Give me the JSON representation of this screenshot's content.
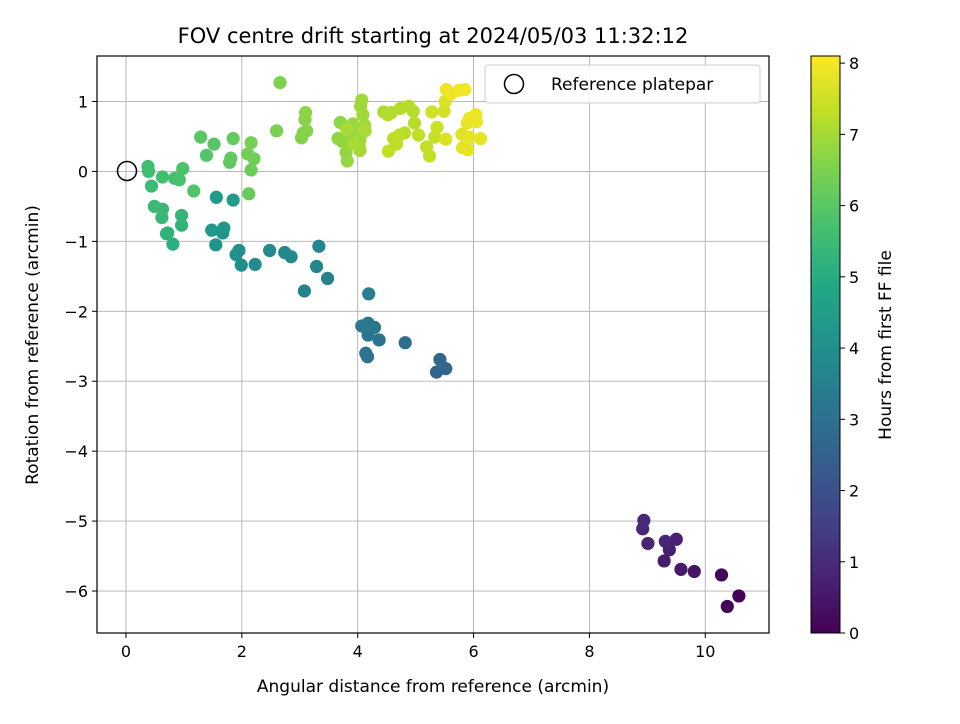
{
  "chart_data": {
    "type": "scatter",
    "title": "FOV centre drift starting at 2024/05/03 11:32:12",
    "xlabel": "Angular distance from reference (arcmin)",
    "ylabel": "Rotation from reference (arcmin)",
    "xlim": [
      -0.5,
      11.1
    ],
    "ylim": [
      -6.6,
      1.65
    ],
    "xticks": [
      0,
      2,
      4,
      6,
      8,
      10
    ],
    "yticks": [
      1,
      0,
      -1,
      -2,
      -3,
      -4,
      -5,
      -6
    ],
    "grid": true,
    "legend": {
      "position": "top-right",
      "entries": [
        "Reference platepar"
      ]
    },
    "colorbar": {
      "label": "Hours from first FF file",
      "range": [
        0,
        8.1
      ],
      "ticks": [
        0,
        1,
        2,
        3,
        4,
        5,
        6,
        7,
        8
      ],
      "colormap": "viridis"
    },
    "reference_point": {
      "x": 0,
      "y": 0
    },
    "points": [
      {
        "x": 10.38,
        "y": -6.22,
        "c": 0.05
      },
      {
        "x": 10.58,
        "y": -6.07,
        "c": 0.1
      },
      {
        "x": 10.28,
        "y": -5.77,
        "c": 0.15
      },
      {
        "x": 9.81,
        "y": -5.72,
        "c": 0.45
      },
      {
        "x": 9.58,
        "y": -5.69,
        "c": 0.55
      },
      {
        "x": 9.29,
        "y": -5.57,
        "c": 0.65
      },
      {
        "x": 9.38,
        "y": -5.41,
        "c": 0.7
      },
      {
        "x": 9.5,
        "y": -5.26,
        "c": 0.75
      },
      {
        "x": 9.31,
        "y": -5.29,
        "c": 0.8
      },
      {
        "x": 9.01,
        "y": -5.32,
        "c": 0.85
      },
      {
        "x": 8.92,
        "y": -5.11,
        "c": 0.9
      },
      {
        "x": 8.94,
        "y": -4.99,
        "c": 0.95
      },
      {
        "x": 5.36,
        "y": -2.87,
        "c": 2.6
      },
      {
        "x": 5.52,
        "y": -2.82,
        "c": 2.65
      },
      {
        "x": 5.42,
        "y": -2.69,
        "c": 2.7
      },
      {
        "x": 4.82,
        "y": -2.45,
        "c": 2.9
      },
      {
        "x": 4.17,
        "y": -2.65,
        "c": 3.0
      },
      {
        "x": 4.14,
        "y": -2.6,
        "c": 3.05
      },
      {
        "x": 4.37,
        "y": -2.41,
        "c": 3.1
      },
      {
        "x": 4.18,
        "y": -2.34,
        "c": 3.15
      },
      {
        "x": 4.29,
        "y": -2.23,
        "c": 3.2
      },
      {
        "x": 4.18,
        "y": -2.17,
        "c": 3.25
      },
      {
        "x": 4.07,
        "y": -2.21,
        "c": 3.3
      },
      {
        "x": 4.19,
        "y": -1.75,
        "c": 3.4
      },
      {
        "x": 3.48,
        "y": -1.53,
        "c": 3.55
      },
      {
        "x": 3.08,
        "y": -1.71,
        "c": 3.6
      },
      {
        "x": 3.29,
        "y": -1.36,
        "c": 3.65
      },
      {
        "x": 3.33,
        "y": -1.07,
        "c": 3.7
      },
      {
        "x": 2.85,
        "y": -1.22,
        "c": 3.75
      },
      {
        "x": 2.74,
        "y": -1.16,
        "c": 3.8
      },
      {
        "x": 2.48,
        "y": -1.13,
        "c": 3.85
      },
      {
        "x": 2.23,
        "y": -1.33,
        "c": 3.9
      },
      {
        "x": 1.99,
        "y": -1.34,
        "c": 3.95
      },
      {
        "x": 1.95,
        "y": -1.13,
        "c": 4.0
      },
      {
        "x": 1.9,
        "y": -1.19,
        "c": 4.05
      },
      {
        "x": 1.55,
        "y": -1.05,
        "c": 4.1
      },
      {
        "x": 1.67,
        "y": -0.88,
        "c": 4.2
      },
      {
        "x": 1.69,
        "y": -0.81,
        "c": 4.25
      },
      {
        "x": 1.48,
        "y": -0.84,
        "c": 4.3
      },
      {
        "x": 1.56,
        "y": -0.37,
        "c": 4.4
      },
      {
        "x": 1.85,
        "y": -0.41,
        "c": 4.45
      },
      {
        "x": 0.81,
        "y": -1.04,
        "c": 5.1
      },
      {
        "x": 0.72,
        "y": -0.88,
        "c": 5.15
      },
      {
        "x": 0.7,
        "y": -0.89,
        "c": 5.2
      },
      {
        "x": 0.96,
        "y": -0.77,
        "c": 5.25
      },
      {
        "x": 0.96,
        "y": -0.63,
        "c": 5.3
      },
      {
        "x": 0.62,
        "y": -0.66,
        "c": 5.35
      },
      {
        "x": 0.63,
        "y": -0.54,
        "c": 5.4
      },
      {
        "x": 0.49,
        "y": -0.5,
        "c": 5.45
      },
      {
        "x": 0.44,
        "y": -0.21,
        "c": 5.5
      },
      {
        "x": 0.38,
        "y": 0.07,
        "c": 5.55
      },
      {
        "x": 0.39,
        "y": 0.0,
        "c": 5.6
      },
      {
        "x": 0.63,
        "y": -0.08,
        "c": 5.65
      },
      {
        "x": 0.84,
        "y": -0.1,
        "c": 5.7
      },
      {
        "x": 0.92,
        "y": -0.12,
        "c": 5.75
      },
      {
        "x": 0.98,
        "y": 0.04,
        "c": 5.8
      },
      {
        "x": 1.17,
        "y": -0.28,
        "c": 5.85
      },
      {
        "x": 1.39,
        "y": 0.23,
        "c": 5.9
      },
      {
        "x": 1.52,
        "y": 0.39,
        "c": 5.95
      },
      {
        "x": 1.29,
        "y": 0.49,
        "c": 6.0
      },
      {
        "x": 1.79,
        "y": 0.13,
        "c": 6.05
      },
      {
        "x": 1.81,
        "y": 0.19,
        "c": 6.1
      },
      {
        "x": 1.85,
        "y": 0.47,
        "c": 6.15
      },
      {
        "x": 2.12,
        "y": -0.32,
        "c": 6.2
      },
      {
        "x": 2.16,
        "y": 0.02,
        "c": 6.25
      },
      {
        "x": 2.21,
        "y": 0.18,
        "c": 6.3
      },
      {
        "x": 2.1,
        "y": 0.25,
        "c": 6.35
      },
      {
        "x": 2.16,
        "y": 0.41,
        "c": 6.4
      },
      {
        "x": 2.6,
        "y": 0.58,
        "c": 6.45
      },
      {
        "x": 2.66,
        "y": 1.27,
        "c": 6.5
      },
      {
        "x": 3.03,
        "y": 0.48,
        "c": 6.55
      },
      {
        "x": 3.06,
        "y": 0.55,
        "c": 6.6
      },
      {
        "x": 3.12,
        "y": 0.58,
        "c": 6.62
      },
      {
        "x": 3.09,
        "y": 0.74,
        "c": 6.65
      },
      {
        "x": 3.1,
        "y": 0.84,
        "c": 6.68
      },
      {
        "x": 3.7,
        "y": 0.7,
        "c": 6.7
      },
      {
        "x": 3.77,
        "y": 0.47,
        "c": 6.72
      },
      {
        "x": 3.66,
        "y": 0.47,
        "c": 6.74
      },
      {
        "x": 3.73,
        "y": 0.43,
        "c": 6.76
      },
      {
        "x": 3.8,
        "y": 0.27,
        "c": 6.78
      },
      {
        "x": 3.82,
        "y": 0.15,
        "c": 6.8
      },
      {
        "x": 3.86,
        "y": 0.58,
        "c": 6.82
      },
      {
        "x": 3.92,
        "y": 0.68,
        "c": 6.84
      },
      {
        "x": 3.97,
        "y": 0.52,
        "c": 6.86
      },
      {
        "x": 4.04,
        "y": 0.45,
        "c": 6.88
      },
      {
        "x": 4.05,
        "y": 0.93,
        "c": 6.9
      },
      {
        "x": 4.07,
        "y": 1.02,
        "c": 6.92
      },
      {
        "x": 4.09,
        "y": 0.81,
        "c": 6.94
      },
      {
        "x": 4.12,
        "y": 0.66,
        "c": 6.96
      },
      {
        "x": 4.03,
        "y": 0.35,
        "c": 6.98
      },
      {
        "x": 4.04,
        "y": 0.3,
        "c": 7.0
      },
      {
        "x": 3.92,
        "y": 0.4,
        "c": 7.02
      },
      {
        "x": 3.81,
        "y": 0.6,
        "c": 7.04
      },
      {
        "x": 4.13,
        "y": 0.58,
        "c": 7.06
      },
      {
        "x": 4.45,
        "y": 0.85,
        "c": 7.1
      },
      {
        "x": 4.52,
        "y": 0.81,
        "c": 7.12
      },
      {
        "x": 4.58,
        "y": 0.84,
        "c": 7.14
      },
      {
        "x": 4.74,
        "y": 0.9,
        "c": 7.16
      },
      {
        "x": 4.88,
        "y": 0.93,
        "c": 7.18
      },
      {
        "x": 4.96,
        "y": 0.86,
        "c": 7.2
      },
      {
        "x": 4.98,
        "y": 0.69,
        "c": 7.22
      },
      {
        "x": 4.81,
        "y": 0.55,
        "c": 7.24
      },
      {
        "x": 4.72,
        "y": 0.52,
        "c": 7.26
      },
      {
        "x": 4.62,
        "y": 0.47,
        "c": 7.28
      },
      {
        "x": 4.67,
        "y": 0.39,
        "c": 7.3
      },
      {
        "x": 4.53,
        "y": 0.29,
        "c": 7.32
      },
      {
        "x": 5.05,
        "y": 0.52,
        "c": 7.34
      },
      {
        "x": 5.19,
        "y": 0.35,
        "c": 7.36
      },
      {
        "x": 5.24,
        "y": 0.22,
        "c": 7.38
      },
      {
        "x": 5.33,
        "y": 0.49,
        "c": 7.4
      },
      {
        "x": 5.37,
        "y": 0.63,
        "c": 7.45
      },
      {
        "x": 5.28,
        "y": 0.85,
        "c": 7.5
      },
      {
        "x": 5.49,
        "y": 0.86,
        "c": 7.55
      },
      {
        "x": 5.51,
        "y": 1.0,
        "c": 7.6
      },
      {
        "x": 5.52,
        "y": 0.46,
        "c": 7.65
      },
      {
        "x": 5.8,
        "y": 0.53,
        "c": 7.7
      },
      {
        "x": 5.81,
        "y": 0.34,
        "c": 7.75
      },
      {
        "x": 5.9,
        "y": 0.31,
        "c": 7.78
      },
      {
        "x": 5.93,
        "y": 0.49,
        "c": 7.8
      },
      {
        "x": 6.12,
        "y": 0.47,
        "c": 7.82
      },
      {
        "x": 5.89,
        "y": 0.69,
        "c": 7.84
      },
      {
        "x": 5.93,
        "y": 0.76,
        "c": 7.86
      },
      {
        "x": 6.05,
        "y": 0.71,
        "c": 7.88
      },
      {
        "x": 6.04,
        "y": 0.81,
        "c": 7.9
      },
      {
        "x": 5.53,
        "y": 1.17,
        "c": 7.92
      },
      {
        "x": 5.61,
        "y": 1.11,
        "c": 7.94
      },
      {
        "x": 5.75,
        "y": 1.16,
        "c": 7.96
      },
      {
        "x": 5.85,
        "y": 1.17,
        "c": 7.98
      }
    ]
  }
}
